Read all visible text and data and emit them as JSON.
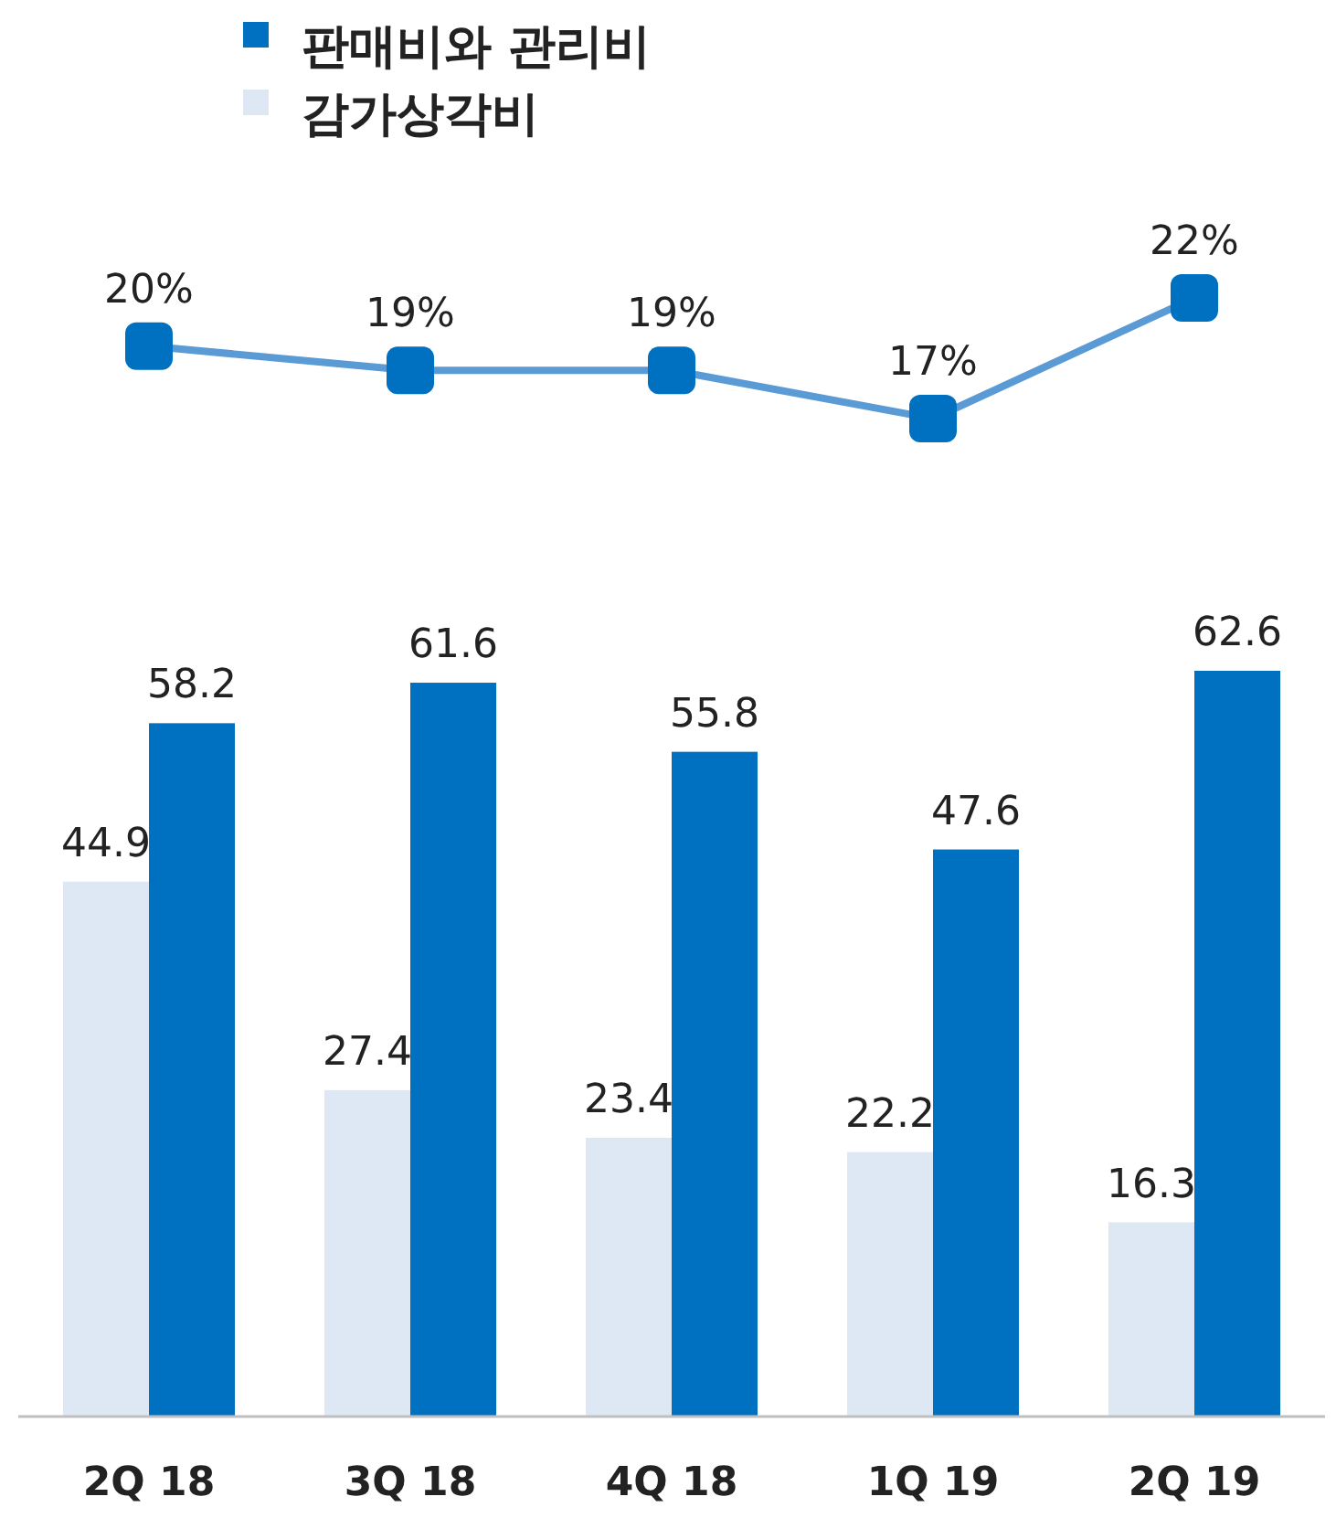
{
  "chart_data": [
    {
      "type": "line",
      "categories": [
        null,
        null,
        null,
        null,
        null
      ],
      "marker": "square",
      "series": [
        {
          "color": "#5b9bd5",
          "colors": [
            "#0070c0",
            "#0070c0",
            "#0070c0",
            "#0070c0",
            "#0070c0"
          ],
          "values": [
            20,
            19,
            19,
            17,
            22
          ],
          "value_labels": [
            "20%",
            "19%",
            "19%",
            "17%",
            "22%"
          ]
        }
      ]
    },
    {
      "type": "bar",
      "categories": [
        "2Q 18",
        "3Q 18",
        "4Q 18",
        "1Q 19",
        "2Q 19"
      ],
      "tick_labels": "x",
      "data_labels": true,
      "legend": "top",
      "grid": false,
      "series": [
        {
          "name": "감가상각비",
          "color": "#dde8f4",
          "values": [
            44.9,
            27.4,
            23.4,
            22.2,
            16.3
          ]
        },
        {
          "name": "판매비와 관리비",
          "color": "#0070c0",
          "values": [
            58.2,
            61.6,
            55.8,
            47.6,
            62.6
          ]
        }
      ]
    }
  ]
}
